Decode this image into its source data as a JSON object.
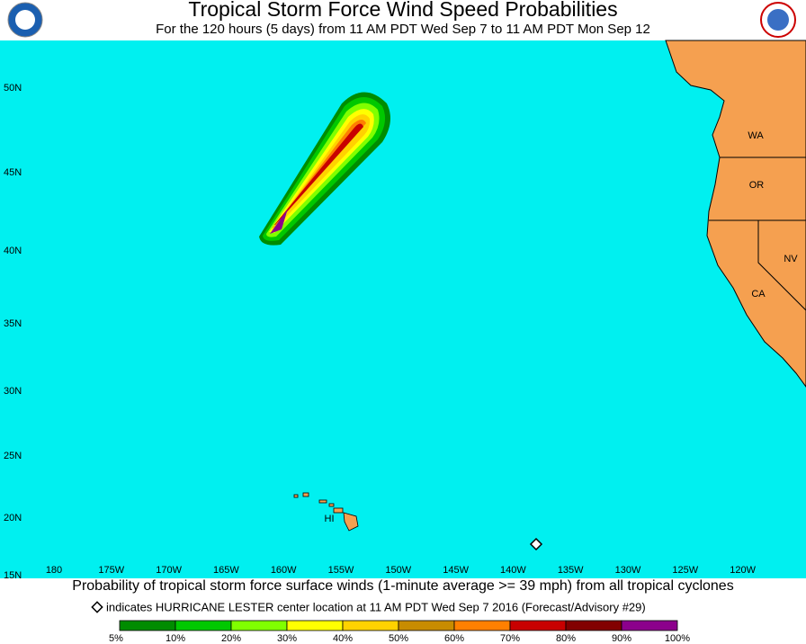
{
  "header": {
    "title": "Tropical Storm Force Wind Speed Probabilities",
    "subtitle": "For the 120 hours (5 days) from 11 AM PDT Wed Sep 7 to 11 AM PDT Mon Sep 12"
  },
  "map": {
    "lat_labels": [
      "50N",
      "45N",
      "40N",
      "35N",
      "30N",
      "25N",
      "20N",
      "15N"
    ],
    "lon_labels": [
      "180",
      "175W",
      "170W",
      "165W",
      "160W",
      "155W",
      "150W",
      "145W",
      "140W",
      "135W",
      "130W",
      "125W",
      "120W"
    ],
    "region_labels": [
      "WA",
      "OR",
      "NV",
      "CA",
      "HI"
    ]
  },
  "caption": "Probability of tropical storm force surface winds (1-minute average >= 39 mph) from all tropical cyclones",
  "note": "indicates HURRICANE LESTER center location at 11 AM PDT Wed Sep 7 2016 (Forecast/Advisory #29)",
  "legend": {
    "labels": [
      "5%",
      "10%",
      "20%",
      "30%",
      "40%",
      "50%",
      "60%",
      "70%",
      "80%",
      "90%",
      "100%"
    ],
    "colors": [
      "#008c00",
      "#00c800",
      "#80ff00",
      "#ffff00",
      "#ffd200",
      "#c88c00",
      "#ff8000",
      "#c80000",
      "#820000",
      "#8c008c"
    ]
  }
}
